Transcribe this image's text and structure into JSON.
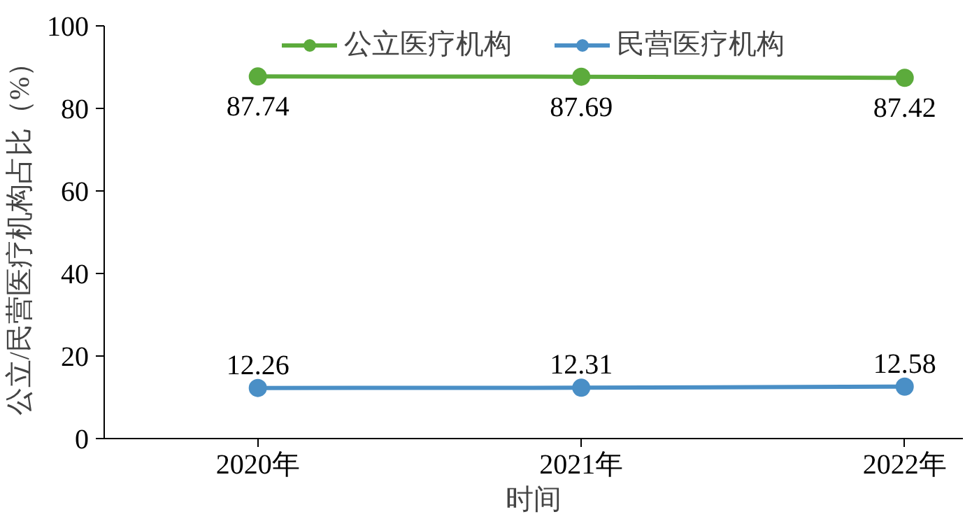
{
  "chart_data": {
    "type": "line",
    "xlabel": "时间",
    "ylabel": "公立/民营医疗机构占比（%）",
    "categories": [
      "2020年",
      "2021年",
      "2022年"
    ],
    "series": [
      {
        "name": "公立医疗机构",
        "color": "#5cab3c",
        "values": [
          87.74,
          87.69,
          87.42
        ]
      },
      {
        "name": "民营医疗机构",
        "color": "#4a8fc6",
        "values": [
          12.26,
          12.31,
          12.58
        ]
      }
    ],
    "ylim": [
      0,
      100
    ],
    "yticks": [
      0,
      20,
      40,
      60,
      80,
      100
    ],
    "data_labels": true,
    "legend": "top",
    "marker": "circle",
    "line_style": "solid",
    "grid": false
  }
}
